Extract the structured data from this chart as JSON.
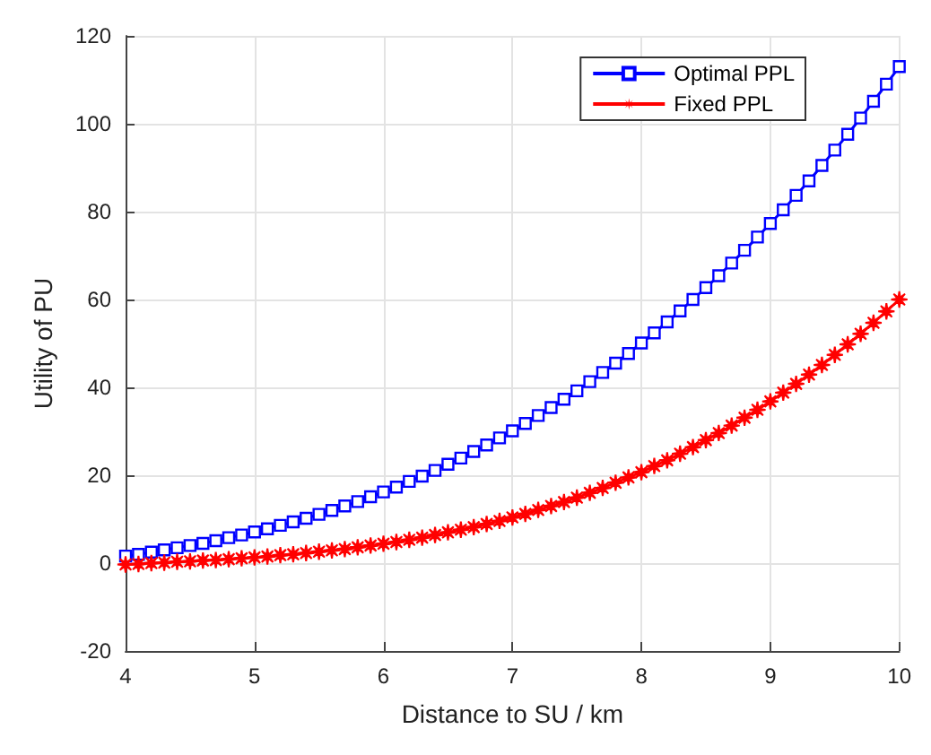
{
  "chart_data": {
    "type": "line",
    "xlabel": "Distance to SU / km",
    "ylabel": "Utility of PU",
    "x": [
      4,
      4.1,
      4.2,
      4.3,
      4.4,
      4.5,
      4.6,
      4.7,
      4.8,
      4.9,
      5,
      5.1,
      5.2,
      5.3,
      5.4,
      5.5,
      5.6,
      5.7,
      5.8,
      5.9,
      6,
      6.1,
      6.2,
      6.3,
      6.4,
      6.5,
      6.6,
      6.7,
      6.8,
      6.9,
      7,
      7.1,
      7.2,
      7.3,
      7.4,
      7.5,
      7.6,
      7.7,
      7.8,
      7.9,
      8,
      8.1,
      8.2,
      8.3,
      8.4,
      8.5,
      8.6,
      8.7,
      8.8,
      8.9,
      9,
      9.1,
      9.2,
      9.3,
      9.4,
      9.5,
      9.6,
      9.7,
      9.8,
      9.9,
      10
    ],
    "series": [
      {
        "name": "Optimal PPL",
        "color": "#0000ff",
        "marker": "square",
        "values": [
          1.6,
          2.0,
          2.5,
          3.0,
          3.5,
          4.0,
          4.5,
          5.1,
          5.8,
          6.4,
          7.1,
          7.8,
          8.6,
          9.4,
          10.2,
          11.1,
          12.0,
          13.0,
          14.0,
          15.1,
          16.2,
          17.3,
          18.6,
          19.8,
          21.1,
          22.5,
          23.9,
          25.4,
          26.9,
          28.5,
          30.1,
          31.8,
          33.6,
          35.4,
          37.3,
          39.2,
          41.3,
          43.4,
          45.5,
          47.7,
          50.1,
          52.4,
          54.9,
          57.4,
          60.0,
          62.7,
          65.4,
          68.3,
          71.2,
          74.2,
          77.3,
          80.4,
          83.7,
          87.0,
          90.5,
          94.0,
          97.6,
          101.3,
          105.1,
          109.0,
          113.0
        ]
      },
      {
        "name": "Fixed PPL",
        "color": "#ff0000",
        "marker": "star",
        "values": [
          -0.3,
          -0.2,
          0.0,
          0.1,
          0.3,
          0.4,
          0.6,
          0.7,
          0.9,
          1.1,
          1.3,
          1.5,
          1.8,
          2.0,
          2.3,
          2.6,
          2.9,
          3.2,
          3.6,
          4.0,
          4.4,
          4.8,
          5.3,
          5.8,
          6.4,
          7.0,
          7.6,
          8.2,
          8.9,
          9.6,
          10.4,
          11.2,
          12.1,
          13.0,
          13.9,
          14.9,
          16.0,
          17.1,
          18.3,
          19.5,
          20.7,
          22.1,
          23.4,
          24.9,
          26.4,
          28.0,
          29.6,
          31.3,
          33.1,
          34.9,
          36.8,
          38.8,
          40.8,
          42.9,
          45.1,
          47.4,
          49.8,
          52.2,
          54.7,
          57.3,
          60.0
        ]
      }
    ],
    "xlim": [
      4,
      10
    ],
    "xticks": [
      4,
      5,
      6,
      7,
      8,
      9,
      10
    ],
    "ylim": [
      -20,
      120
    ],
    "yticks": [
      -20,
      0,
      20,
      40,
      60,
      80,
      100,
      120
    ],
    "grid": true,
    "legend": "top right",
    "line_style": "solid"
  }
}
